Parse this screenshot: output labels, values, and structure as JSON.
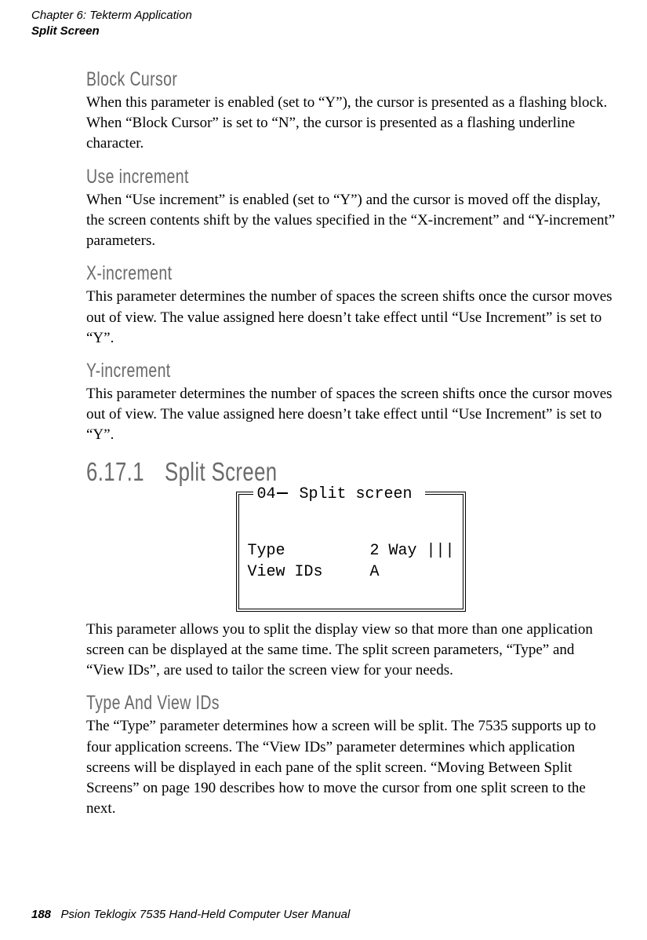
{
  "header": {
    "chapter": "Chapter 6: Tekterm Application",
    "section": "Split Screen"
  },
  "sections": {
    "blockCursor": {
      "title": "Block Cursor",
      "body": "When this parameter is enabled (set to “Y”), the cursor is presented as a flashing block. When “Block Cursor” is set to “N”, the cursor is presented as a flashing underline character."
    },
    "useIncrement": {
      "title": "Use increment",
      "body": "When “Use increment” is enabled (set to “Y”) and the cursor is moved off the display, the screen contents shift by the values specified in the “X-increment” and “Y-increment” parameters."
    },
    "xIncrement": {
      "title": "X-increment",
      "body": "This parameter determines the number of spaces the screen shifts once the cursor moves out of view. The value assigned here doesn’t take effect until “Use Increment” is set to “Y”."
    },
    "yIncrement": {
      "title": "Y-increment",
      "body": "This parameter determines the number of spaces the screen shifts once the cursor moves out of view. The value assigned here doesn’t take effect until “Use Increment” is set to “Y”."
    },
    "splitScreen": {
      "title": "6.17.1 Split Screen",
      "screen": {
        "titleNum": "04",
        "titleText": " Split screen ",
        "line1": "Type         2 Way |||",
        "line2": "View IDs     A"
      },
      "body": "This parameter allows you to split the display view so that more than one application screen can be displayed at the same time. The split screen parameters, “Type” and “View IDs”, are used to tailor the screen view for your needs."
    },
    "typeViewIds": {
      "title": "Type And View IDs",
      "body": "The “Type” parameter determines how a screen will be split. The 7535 supports up to four application screens. The “View IDs” parameter determines which application screens will be displayed in each pane of the split screen. “Moving Between Split Screens” on page 190 describes how to move the cursor from one split screen to the next."
    }
  },
  "footer": {
    "pageNumber": "188",
    "text": "Psion Teklogix 7535 Hand-Held Computer User Manual"
  }
}
